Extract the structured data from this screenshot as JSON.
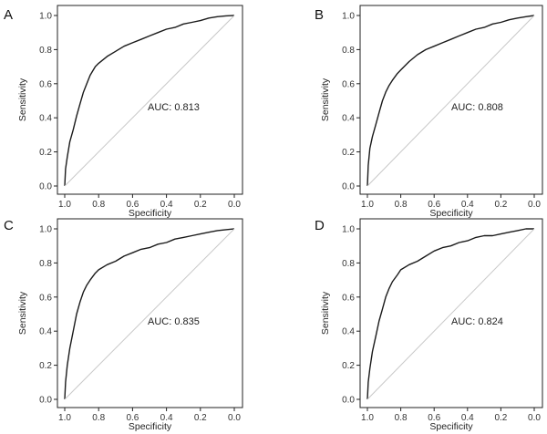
{
  "chart_data": [
    {
      "type": "line",
      "panel_label": "A",
      "annotation": "AUC: 0.813",
      "xlabel": "Specificity",
      "ylabel": "Sensitivity",
      "xlim": [
        1.0,
        0.0
      ],
      "ylim": [
        0.0,
        1.0
      ],
      "x_reversed": true,
      "xticks": [
        "1.0",
        "0.8",
        "0.6",
        "0.4",
        "0.2",
        "0.0"
      ],
      "yticks": [
        "0.0",
        "0.2",
        "0.4",
        "0.6",
        "0.8",
        "1.0"
      ],
      "grid": false,
      "series": [
        {
          "x": [
            1.0,
            0.995,
            0.985,
            0.97,
            0.95,
            0.93,
            0.91,
            0.89,
            0.87,
            0.85,
            0.82,
            0.8,
            0.75,
            0.7,
            0.65,
            0.6,
            0.55,
            0.5,
            0.45,
            0.4,
            0.35,
            0.3,
            0.25,
            0.2,
            0.15,
            0.1,
            0.05,
            0.0
          ],
          "y": [
            0.0,
            0.1,
            0.17,
            0.26,
            0.33,
            0.41,
            0.48,
            0.55,
            0.6,
            0.65,
            0.7,
            0.72,
            0.76,
            0.79,
            0.82,
            0.84,
            0.86,
            0.88,
            0.9,
            0.92,
            0.93,
            0.95,
            0.96,
            0.97,
            0.985,
            0.993,
            0.998,
            1.0
          ]
        },
        {
          "x": [
            1.0,
            0.0
          ],
          "y": [
            0.0,
            1.0
          ]
        }
      ]
    },
    {
      "type": "line",
      "panel_label": "B",
      "annotation": "AUC: 0.808",
      "xlabel": "Specificity",
      "ylabel": "Sensitivity",
      "xlim": [
        1.0,
        0.0
      ],
      "ylim": [
        0.0,
        1.0
      ],
      "x_reversed": true,
      "xticks": [
        "1.0",
        "0.8",
        "0.6",
        "0.4",
        "0.2",
        "0.0"
      ],
      "yticks": [
        "0.0",
        "0.2",
        "0.4",
        "0.6",
        "0.8",
        "1.0"
      ],
      "grid": false,
      "series": [
        {
          "x": [
            1.0,
            0.995,
            0.985,
            0.97,
            0.95,
            0.93,
            0.91,
            0.89,
            0.87,
            0.85,
            0.82,
            0.8,
            0.75,
            0.7,
            0.65,
            0.6,
            0.55,
            0.5,
            0.45,
            0.4,
            0.35,
            0.3,
            0.25,
            0.2,
            0.15,
            0.1,
            0.05,
            0.0
          ],
          "y": [
            0.0,
            0.12,
            0.22,
            0.29,
            0.36,
            0.43,
            0.5,
            0.55,
            0.59,
            0.62,
            0.66,
            0.68,
            0.73,
            0.77,
            0.8,
            0.82,
            0.84,
            0.86,
            0.88,
            0.9,
            0.92,
            0.93,
            0.95,
            0.96,
            0.975,
            0.985,
            0.993,
            1.0
          ]
        },
        {
          "x": [
            1.0,
            0.0
          ],
          "y": [
            0.0,
            1.0
          ]
        }
      ]
    },
    {
      "type": "line",
      "panel_label": "C",
      "annotation": "AUC: 0.835",
      "xlabel": "Specificity",
      "ylabel": "Sensitivity",
      "xlim": [
        1.0,
        0.0
      ],
      "ylim": [
        0.0,
        1.0
      ],
      "x_reversed": true,
      "xticks": [
        "1.0",
        "0.8",
        "0.6",
        "0.4",
        "0.2",
        "0.0"
      ],
      "yticks": [
        "0.0",
        "0.2",
        "0.4",
        "0.6",
        "0.8",
        "1.0"
      ],
      "grid": false,
      "series": [
        {
          "x": [
            1.0,
            0.995,
            0.985,
            0.97,
            0.95,
            0.93,
            0.91,
            0.89,
            0.87,
            0.85,
            0.82,
            0.8,
            0.75,
            0.7,
            0.65,
            0.6,
            0.55,
            0.5,
            0.45,
            0.4,
            0.35,
            0.3,
            0.25,
            0.2,
            0.15,
            0.1,
            0.05,
            0.0
          ],
          "y": [
            0.0,
            0.1,
            0.2,
            0.3,
            0.4,
            0.5,
            0.57,
            0.63,
            0.67,
            0.7,
            0.74,
            0.76,
            0.79,
            0.81,
            0.84,
            0.86,
            0.88,
            0.89,
            0.91,
            0.92,
            0.94,
            0.95,
            0.96,
            0.97,
            0.98,
            0.99,
            0.995,
            1.0
          ]
        },
        {
          "x": [
            1.0,
            0.0
          ],
          "y": [
            0.0,
            1.0
          ]
        }
      ]
    },
    {
      "type": "line",
      "panel_label": "D",
      "annotation": "AUC: 0.824",
      "xlabel": "Specificity",
      "ylabel": "Sensitivity",
      "xlim": [
        1.0,
        0.0
      ],
      "ylim": [
        0.0,
        1.0
      ],
      "x_reversed": true,
      "xticks": [
        "1.0",
        "0.8",
        "0.6",
        "0.4",
        "0.2",
        "0.0"
      ],
      "yticks": [
        "0.0",
        "0.2",
        "0.4",
        "0.6",
        "0.8",
        "1.0"
      ],
      "grid": false,
      "series": [
        {
          "x": [
            1.0,
            0.995,
            0.985,
            0.97,
            0.95,
            0.93,
            0.91,
            0.89,
            0.87,
            0.85,
            0.82,
            0.8,
            0.75,
            0.7,
            0.65,
            0.6,
            0.55,
            0.5,
            0.45,
            0.4,
            0.35,
            0.3,
            0.25,
            0.2,
            0.15,
            0.1,
            0.05,
            0.0
          ],
          "y": [
            0.0,
            0.1,
            0.18,
            0.28,
            0.37,
            0.46,
            0.53,
            0.6,
            0.65,
            0.69,
            0.73,
            0.76,
            0.79,
            0.81,
            0.84,
            0.87,
            0.89,
            0.9,
            0.92,
            0.93,
            0.95,
            0.96,
            0.96,
            0.97,
            0.98,
            0.99,
            1.0,
            1.0
          ]
        },
        {
          "x": [
            1.0,
            0.0
          ],
          "y": [
            0.0,
            1.0
          ]
        }
      ]
    }
  ]
}
